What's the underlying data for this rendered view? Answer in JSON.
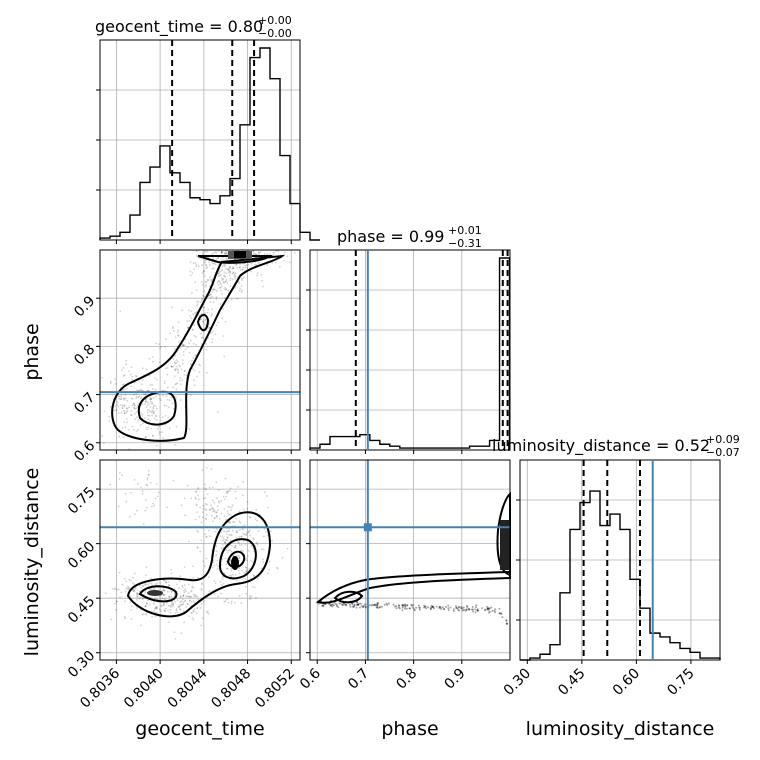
{
  "chart_data": [
    {
      "type": "histogram",
      "panel": "geocent_time-1d",
      "title": {
        "param": "geocent_time",
        "value": "0.80",
        "upper": "+0.00",
        "lower": "−0.00"
      },
      "xlim": [
        0.80345,
        0.80528
      ],
      "x_ticks": [
        0.8036,
        0.804,
        0.8044,
        0.8048,
        0.8052
      ],
      "x_tick_labels": [
        "0.8036",
        "0.8040",
        "0.8044",
        "0.8048",
        "0.8052"
      ],
      "quantiles": [
        0.80411,
        0.80466,
        0.80486
      ],
      "bin_start": 0.80345,
      "bin_width": 9.15e-05,
      "counts": [
        0.01,
        0.02,
        0.04,
        0.13,
        0.3,
        0.38,
        0.49,
        0.35,
        0.3,
        0.22,
        0.21,
        0.19,
        0.23,
        0.32,
        0.6,
        0.95,
        1.0,
        0.84,
        0.44,
        0.19,
        0.04,
        0.0
      ]
    },
    {
      "type": "contour",
      "panel": "geocent_time-vs-phase",
      "xlim": [
        0.80345,
        0.80528
      ],
      "ylim": [
        0.585,
        1.0
      ],
      "y_ticks": [
        0.6,
        0.7,
        0.8,
        0.9
      ],
      "y_tick_labels": [
        "0.6",
        "0.7",
        "0.8",
        "0.9"
      ],
      "ylabel": "phase",
      "injection": {
        "phase": 0.705
      }
    },
    {
      "type": "histogram",
      "panel": "phase-1d",
      "title": {
        "param": "phase",
        "value": "0.99",
        "upper": "+0.01",
        "lower": "−0.31"
      },
      "xlim": [
        0.585,
        1.0
      ],
      "x_ticks": [
        0.6,
        0.7,
        0.8,
        0.9
      ],
      "x_tick_labels": [
        "0.6",
        "0.7",
        "0.8",
        "0.9"
      ],
      "quantiles": [
        0.68,
        0.985,
        0.995
      ],
      "injection": 0.705,
      "bin_start": 0.585,
      "bin_width": 0.0207,
      "counts": [
        0.01,
        0.03,
        0.07,
        0.07,
        0.07,
        0.08,
        0.05,
        0.03,
        0.02,
        0.01,
        0.01,
        0.01,
        0.01,
        0.01,
        0.01,
        0.01,
        0.02,
        0.02,
        0.05,
        1.0
      ]
    },
    {
      "type": "contour",
      "panel": "geocent_time-vs-luminosity_distance",
      "xlim": [
        0.80345,
        0.80528
      ],
      "ylim": [
        0.28,
        0.83
      ],
      "y_ticks": [
        0.3,
        0.45,
        0.6,
        0.75
      ],
      "y_tick_labels": [
        "0.30",
        "0.45",
        "0.60",
        "0.75"
      ],
      "xlabel": "geocent_time",
      "ylabel": "luminosity_distance",
      "injection": {
        "luminosity_distance": 0.645
      }
    },
    {
      "type": "contour",
      "panel": "phase-vs-luminosity_distance",
      "xlim": [
        0.585,
        1.0
      ],
      "ylim": [
        0.28,
        0.83
      ],
      "xlabel": "phase",
      "injection": {
        "phase": 0.705,
        "luminosity_distance": 0.645
      }
    },
    {
      "type": "histogram",
      "panel": "luminosity_distance-1d",
      "title": {
        "param": "luminosity_distance",
        "value": "0.52",
        "upper": "+0.09",
        "lower": "−0.07"
      },
      "xlim": [
        0.28,
        0.83
      ],
      "x_ticks": [
        0.3,
        0.45,
        0.6,
        0.75
      ],
      "x_tick_labels": [
        "0.30",
        "0.45",
        "0.60",
        "0.75"
      ],
      "xlabel": "luminosity_distance",
      "quantiles": [
        0.455,
        0.52,
        0.61
      ],
      "injection": 0.645,
      "bin_start": 0.28,
      "bin_width": 0.0275,
      "counts": [
        0.0,
        0.01,
        0.03,
        0.08,
        0.35,
        0.68,
        0.82,
        0.88,
        0.7,
        0.76,
        0.68,
        0.42,
        0.27,
        0.14,
        0.12,
        0.09,
        0.06,
        0.04,
        0.01,
        0.01
      ]
    }
  ]
}
